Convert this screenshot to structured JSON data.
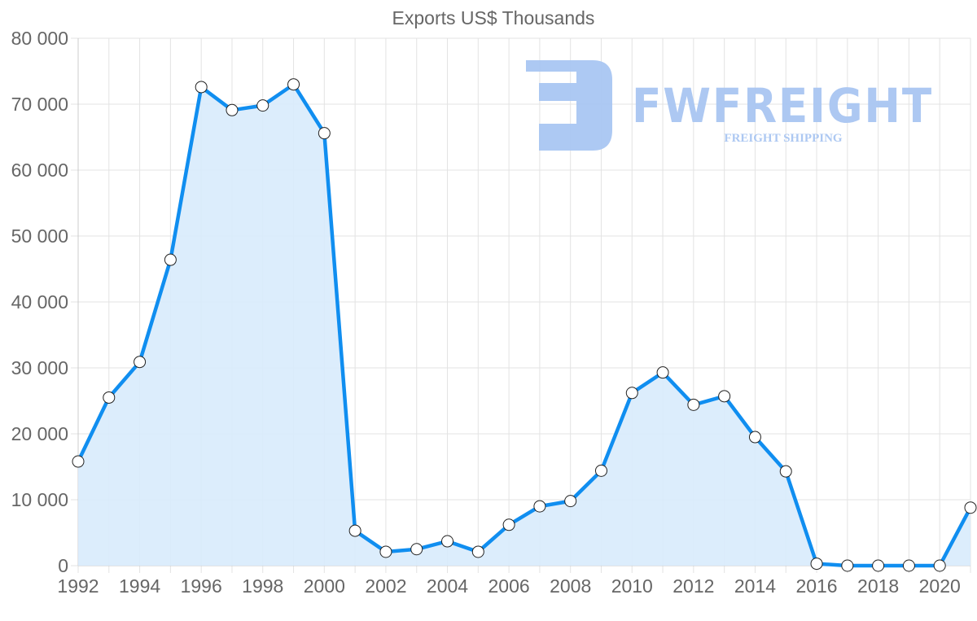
{
  "chart_data": {
    "type": "area",
    "title": "Exports US$ Thousands",
    "xlabel": "",
    "ylabel": "",
    "ylim": [
      0,
      80000
    ],
    "xlim": [
      1992,
      2021
    ],
    "grid": true,
    "legend": null,
    "y_ticks": [
      "0",
      "10 000",
      "20 000",
      "30 000",
      "40 000",
      "50 000",
      "60 000",
      "70 000",
      "80 000"
    ],
    "x_ticks": [
      "1992",
      "1994",
      "1996",
      "1998",
      "2000",
      "2002",
      "2004",
      "2006",
      "2008",
      "2010",
      "2012",
      "2014",
      "2016",
      "2018",
      "2020"
    ],
    "x": [
      1992,
      1993,
      1994,
      1995,
      1996,
      1997,
      1998,
      1999,
      2000,
      2001,
      2002,
      2003,
      2004,
      2005,
      2006,
      2007,
      2008,
      2009,
      2010,
      2011,
      2012,
      2013,
      2014,
      2015,
      2016,
      2017,
      2018,
      2019,
      2020,
      2021
    ],
    "series": [
      {
        "name": "Exports US$ Thousands",
        "values": [
          15800,
          25500,
          30900,
          46400,
          72600,
          69100,
          69800,
          73000,
          65600,
          5300,
          2100,
          2500,
          3700,
          2100,
          6200,
          9000,
          9800,
          14400,
          26200,
          29300,
          24400,
          25700,
          19500,
          14300,
          300,
          0,
          0,
          0,
          0,
          8800
        ],
        "line_color": "#108ef0",
        "fill_color": "#d8ebfc",
        "marker_fill": "#ffffff",
        "marker_stroke": "#222222"
      }
    ]
  },
  "watermark": {
    "brand": "FWFREIGHT",
    "tagline": "FREIGHT SHIPPING",
    "color": "#a9c6f2"
  },
  "colors": {
    "grid": "#e3e3e3",
    "axis_text": "#666666"
  }
}
